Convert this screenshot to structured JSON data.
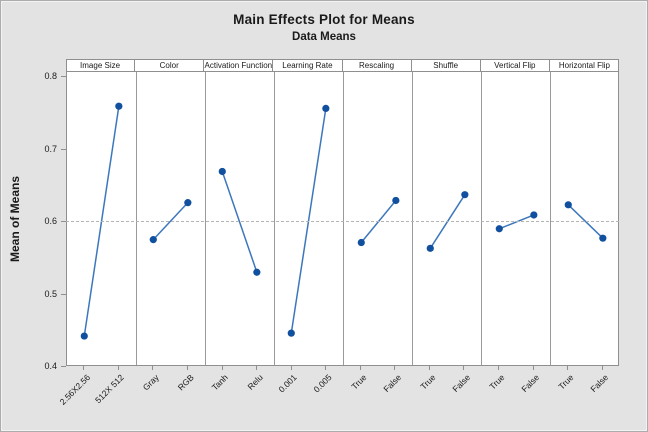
{
  "window": {
    "background_color": "#e3e3e3",
    "panel_background_color": "#ffffff",
    "border_color": "#acacac"
  },
  "chart_data": {
    "type": "line",
    "title": "Main Effects Plot for Means",
    "subtitle": "Data Means",
    "ylabel": "Mean of Means",
    "xlabel": "",
    "ylim": [
      0.4,
      0.8
    ],
    "yticks": [
      0.8,
      0.7,
      0.6,
      0.5,
      0.4
    ],
    "reference_line": 0.6,
    "grid": "off (single dashed horizontal reference line at overall mean 0.6)",
    "legend": "none",
    "layout": "8 side-by-side factor panels sharing one y-axis, factor name in white header strip above each panel, level labels rotated 45 degrees below x-axis",
    "panels": [
      {
        "factor": "Image Size",
        "levels": [
          "2.56X2.56",
          "512X 512"
        ],
        "values": [
          0.442,
          0.759
        ]
      },
      {
        "factor": "Color",
        "levels": [
          "Gray",
          "RGB"
        ],
        "values": [
          0.575,
          0.626
        ]
      },
      {
        "factor": "Activation Function",
        "levels": [
          "Tanh",
          "Relu"
        ],
        "values": [
          0.669,
          0.53
        ]
      },
      {
        "factor": "Learning Rate",
        "levels": [
          "0.001",
          "0.005"
        ],
        "values": [
          0.446,
          0.756
        ]
      },
      {
        "factor": "Rescaling",
        "levels": [
          "True",
          "False"
        ],
        "values": [
          0.571,
          0.629
        ]
      },
      {
        "factor": "Shuffle",
        "levels": [
          "True",
          "False"
        ],
        "values": [
          0.563,
          0.637
        ]
      },
      {
        "factor": "Vertical Flip",
        "levels": [
          "True",
          "False"
        ],
        "values": [
          0.59,
          0.609
        ]
      },
      {
        "factor": "Horizontal Flip",
        "levels": [
          "True",
          "False"
        ],
        "values": [
          0.623,
          0.577
        ]
      }
    ],
    "colors": {
      "marker": "#10509e",
      "line": "#3c77bc",
      "reference_dash": "#b4b4b4",
      "panel_border": "#8f8f8f",
      "text": "#1a1a1a"
    }
  }
}
